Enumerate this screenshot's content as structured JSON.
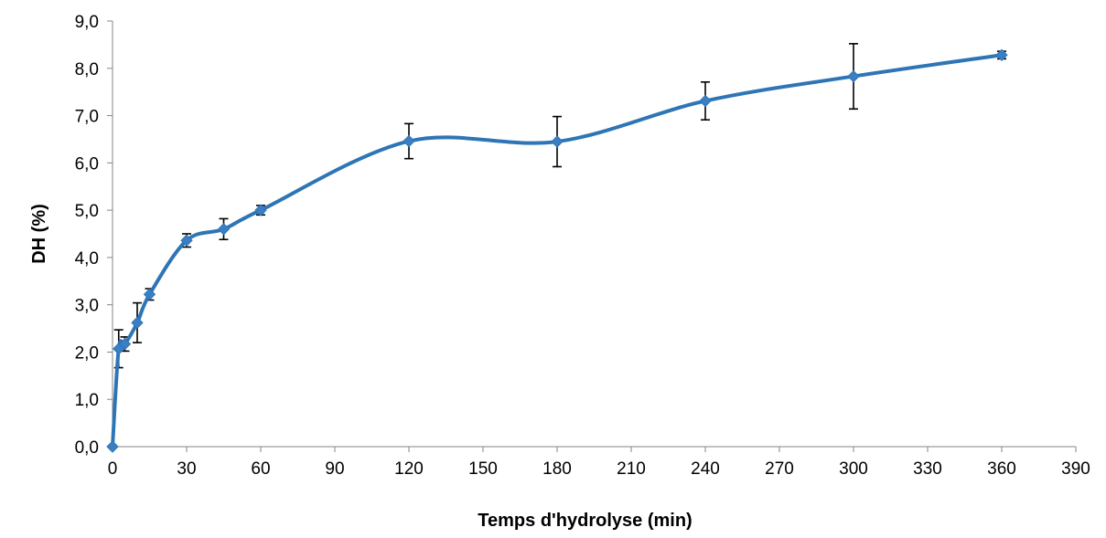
{
  "chart_data": {
    "type": "line",
    "title": "",
    "xlabel": "Temps d'hydrolyse (min)",
    "ylabel": "DH (%)",
    "xlim": [
      0,
      390
    ],
    "ylim": [
      0,
      9
    ],
    "x_ticks": [
      0,
      30,
      60,
      90,
      120,
      150,
      180,
      210,
      240,
      270,
      300,
      330,
      360,
      390
    ],
    "x_tick_labels": [
      "0",
      "30",
      "60",
      "90",
      "120",
      "150",
      "180",
      "210",
      "240",
      "270",
      "300",
      "330",
      "360",
      "390"
    ],
    "y_ticks": [
      0,
      1,
      2,
      3,
      4,
      5,
      6,
      7,
      8,
      9
    ],
    "y_tick_labels": [
      "0,0",
      "1,0",
      "2,0",
      "3,0",
      "4,0",
      "5,0",
      "6,0",
      "7,0",
      "8,0",
      "9,0"
    ],
    "grid": false,
    "legend": "none",
    "smooth": true,
    "series": [
      {
        "color": "#2e75b6",
        "marker_color": "#3a7fc4",
        "marker": "diamond",
        "x": [
          0,
          2.5,
          5,
          10,
          15,
          30,
          45,
          60,
          120,
          180,
          240,
          300,
          360
        ],
        "y": [
          0.0,
          2.07,
          2.17,
          2.62,
          3.22,
          4.36,
          4.6,
          5.0,
          6.46,
          6.45,
          7.31,
          7.83,
          8.28
        ],
        "error": [
          0.0,
          0.4,
          0.15,
          0.42,
          0.12,
          0.14,
          0.22,
          0.1,
          0.37,
          0.53,
          0.4,
          0.69,
          0.08
        ]
      }
    ]
  }
}
